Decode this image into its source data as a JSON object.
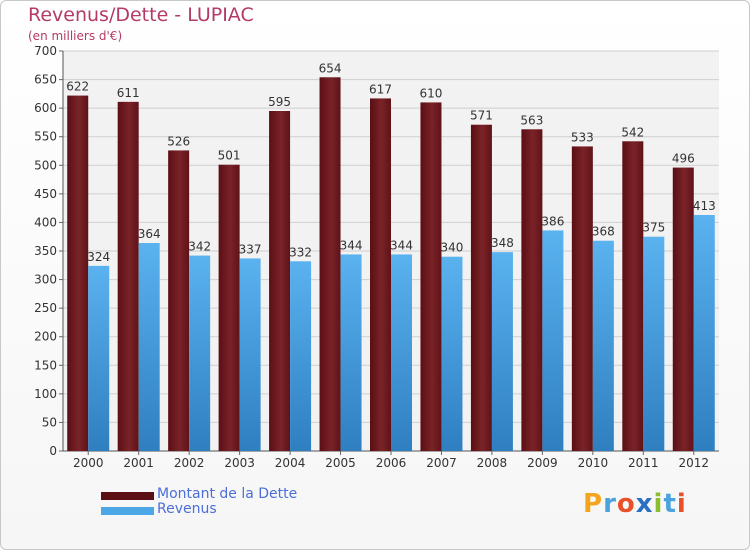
{
  "header": {
    "title": "Revenus/Dette - LUPIAC",
    "subtitle": "(en milliers d'€)"
  },
  "legend": {
    "debt_label": "Montant de la Dette",
    "revenue_label": "Revenus"
  },
  "logo": {
    "text": "Proxiti",
    "letters": [
      "P",
      "r",
      "o",
      "x",
      "i",
      "t",
      "i"
    ],
    "colors": [
      "#f5a51d",
      "#4aa3df",
      "#e8502a",
      "#2a6fc4",
      "#8bbd2f",
      "#4aa3df",
      "#e8502a"
    ]
  },
  "colors": {
    "title": "#b53a67",
    "debt_bar": "#6b1a1f",
    "revenue_bar": "#4da6e6",
    "legend_text": "#4c6ed8",
    "grid": "#cfcfcf"
  },
  "chart_data": {
    "type": "bar",
    "title": "Revenus/Dette - LUPIAC",
    "subtitle": "(en milliers d'€)",
    "xlabel": "",
    "ylabel": "",
    "categories": [
      "2000",
      "2001",
      "2002",
      "2003",
      "2004",
      "2005",
      "2006",
      "2007",
      "2008",
      "2009",
      "2010",
      "2011",
      "2012"
    ],
    "series": [
      {
        "name": "Montant de la Dette",
        "color": "#6b1a1f",
        "values": [
          622,
          611,
          526,
          501,
          595,
          654,
          617,
          610,
          571,
          563,
          533,
          542,
          496
        ]
      },
      {
        "name": "Revenus",
        "color": "#4da6e6",
        "values": [
          324,
          364,
          342,
          337,
          332,
          344,
          344,
          340,
          348,
          386,
          368,
          375,
          413
        ]
      }
    ],
    "ylim": [
      0,
      700
    ],
    "yticks": [
      0,
      50,
      100,
      150,
      200,
      250,
      300,
      350,
      400,
      450,
      500,
      550,
      600,
      650,
      700
    ],
    "grid": true,
    "legend_position": "bottom-left"
  }
}
